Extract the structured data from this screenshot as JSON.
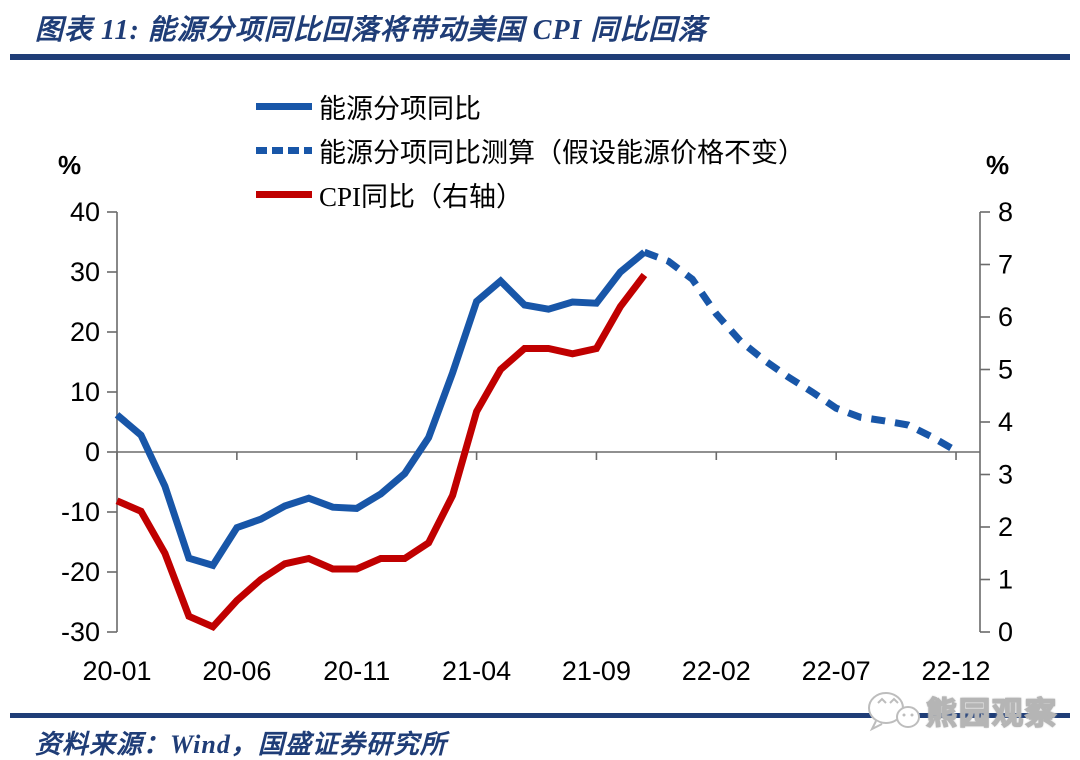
{
  "header": {
    "title": "图表 11: 能源分项同比回落将带动美国 CPI 同比回落"
  },
  "colors": {
    "navy": "#1f3d77",
    "axis_gray": "#6b6b6b",
    "energy_blue": "#1856a8",
    "cpi_red": "#c00000",
    "watermark_gray": "#b5b5b5"
  },
  "legend": [
    {
      "label": "能源分项同比",
      "style": "solid",
      "color": "#1856a8"
    },
    {
      "label": "能源分项同比测算（假设能源价格不变）",
      "style": "dashed",
      "color": "#1856a8"
    },
    {
      "label": "CPI同比（右轴）",
      "style": "solid",
      "color": "#c00000"
    }
  ],
  "footer": {
    "source": "资料来源：Wind，国盛证券研究所",
    "watermark": "熊园观察"
  },
  "chart_data": {
    "type": "line",
    "title": "图表 11: 能源分项同比回落将带动美国 CPI 同比回落",
    "legend_position": "top-left-inside",
    "grid": false,
    "x_months_total": 36,
    "x_start": "2020-01",
    "x_tick_labels": [
      "20-01",
      "20-06",
      "20-11",
      "21-04",
      "21-09",
      "22-02",
      "22-07",
      "22-12"
    ],
    "x_ticks": [
      {
        "label": "20-01",
        "month": 0
      },
      {
        "label": "20-06",
        "month": 5
      },
      {
        "label": "20-11",
        "month": 10
      },
      {
        "label": "21-04",
        "month": 15
      },
      {
        "label": "21-09",
        "month": 20
      },
      {
        "label": "22-02",
        "month": 25
      },
      {
        "label": "22-07",
        "month": 30
      },
      {
        "label": "22-12",
        "month": 35
      }
    ],
    "left_axis": {
      "unit": "%",
      "min": -30,
      "max": 40,
      "ticks": [
        40,
        30,
        20,
        10,
        0,
        -10,
        -20,
        -30
      ]
    },
    "right_axis": {
      "unit": "%",
      "min": 0,
      "max": 8,
      "ticks": [
        8,
        7,
        6,
        5,
        4,
        3,
        2,
        1,
        0
      ]
    },
    "series": [
      {
        "id": "energy-yoy",
        "name": "能源分项同比",
        "axis": "left",
        "style": "solid",
        "color": "#1856a8",
        "start_month": "2020-01",
        "start_index": 0,
        "values": [
          6.2,
          2.8,
          -5.7,
          -17.7,
          -18.9,
          -12.6,
          -11.2,
          -9.0,
          -7.7,
          -9.2,
          -9.4,
          -7.0,
          -3.6,
          2.4,
          13.2,
          25.1,
          28.5,
          24.5,
          23.8,
          25.0,
          24.8,
          30.0,
          33.3
        ]
      },
      {
        "id": "energy-yoy-projection",
        "name": "能源分项同比测算（假设能源价格不变）",
        "axis": "left",
        "style": "dashed",
        "color": "#1856a8",
        "start_month": "2021-11",
        "start_index": 22,
        "values": [
          33.3,
          31.8,
          28.8,
          23.0,
          18.5,
          15.3,
          12.5,
          10.0,
          7.3,
          5.8,
          5.2,
          4.5,
          2.5,
          0.2
        ]
      },
      {
        "id": "cpi-yoy",
        "name": "CPI同比（右轴）",
        "axis": "right",
        "style": "solid",
        "color": "#c00000",
        "start_month": "2020-01",
        "start_index": 0,
        "values": [
          2.5,
          2.3,
          1.5,
          0.3,
          0.1,
          0.6,
          1.0,
          1.3,
          1.4,
          1.2,
          1.2,
          1.4,
          1.4,
          1.7,
          2.6,
          4.2,
          5.0,
          5.4,
          5.4,
          5.3,
          5.4,
          6.2,
          6.8
        ]
      }
    ]
  }
}
